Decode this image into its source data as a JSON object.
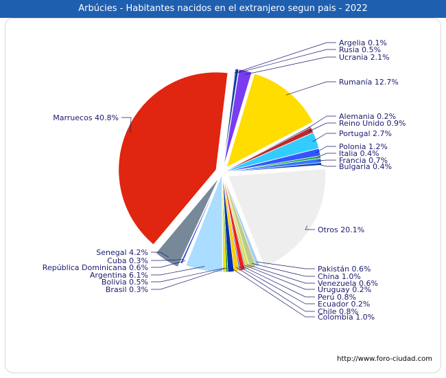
{
  "chart_data": {
    "type": "pie",
    "title": "Arbúcies - Habitantes nacidos en el extranjero segun pais - 2022",
    "slices": [
      {
        "label": "Argelia",
        "value": 0.1,
        "display": "Argelia 0.1%",
        "color": "#1e6fd0"
      },
      {
        "label": "Rusia",
        "value": 0.5,
        "display": "Rusia 0.5%",
        "color": "#1040a0"
      },
      {
        "label": "Ucrania",
        "value": 2.1,
        "display": "Ucrania 2.1%",
        "color": "#7a3cf0"
      },
      {
        "label": "Rumanía",
        "value": 12.7,
        "display": "Rumanía 12.7%",
        "color": "#ffdd00"
      },
      {
        "label": "Alemania",
        "value": 0.2,
        "display": "Alemania 0.2%",
        "color": "#334488"
      },
      {
        "label": "Reino Unido",
        "value": 0.9,
        "display": "Reino Unido 0.9%",
        "color": "#c02828"
      },
      {
        "label": "Portugal",
        "value": 2.7,
        "display": "Portugal 2.7%",
        "color": "#33ccff"
      },
      {
        "label": "Polonia",
        "value": 1.2,
        "display": "Polonia 1.2%",
        "color": "#3355ff"
      },
      {
        "label": "Italia",
        "value": 0.4,
        "display": "Italia 0.4%",
        "color": "#22aa44"
      },
      {
        "label": "Francia",
        "value": 0.7,
        "display": "Francia 0.7%",
        "color": "#3377ff"
      },
      {
        "label": "Bulgaria",
        "value": 0.4,
        "display": "Bulgaria 0.4%",
        "color": "#1144bb"
      },
      {
        "label": "Otros",
        "value": 20.1,
        "display": "Otros 20.1%",
        "color": "#eeeeee"
      },
      {
        "label": "Pakistán",
        "value": 0.6,
        "display": "Pakistán 0.6%",
        "color": "#aaccee"
      },
      {
        "label": "China",
        "value": 1.0,
        "display": "China 1.0%",
        "color": "#bbcc88"
      },
      {
        "label": "Venezuela",
        "value": 0.6,
        "display": "Venezuela 0.6%",
        "color": "#dddd66"
      },
      {
        "label": "Uruguay",
        "value": 0.2,
        "display": "Uruguay 0.2%",
        "color": "#66aa44"
      },
      {
        "label": "Perú",
        "value": 0.8,
        "display": "Perú 0.8%",
        "color": "#ee2222"
      },
      {
        "label": "Ecuador",
        "value": 0.2,
        "display": "Ecuador 0.2%",
        "color": "#2255aa"
      },
      {
        "label": "Chile",
        "value": 0.8,
        "display": "Chile 0.8%",
        "color": "#ffcc00"
      },
      {
        "label": "Colombia",
        "value": 1.0,
        "display": "Colombia 1.0%",
        "color": "#0033aa"
      },
      {
        "label": "Brasil",
        "value": 0.3,
        "display": "Brasil 0.3%",
        "color": "#229922"
      },
      {
        "label": "Bolivia",
        "value": 0.5,
        "display": "Bolivia 0.5%",
        "color": "#eedd00"
      },
      {
        "label": "Argentina",
        "value": 6.1,
        "display": "Argentina 6.1%",
        "color": "#aaddff"
      },
      {
        "label": "República Dominicana",
        "value": 0.6,
        "display": "República Dominicana 0.6%",
        "color": "#ffffff"
      },
      {
        "label": "Cuba",
        "value": 0.3,
        "display": "Cuba 0.3%",
        "color": "#3344cc"
      },
      {
        "label": "Senegal",
        "value": 4.2,
        "display": "Senegal 4.2%",
        "color": "#778899"
      },
      {
        "label": "Marruecos",
        "value": 40.8,
        "display": "Marruecos 40.8%",
        "color": "#e02510"
      }
    ]
  },
  "source": "http://www.foro-ciudad.com"
}
